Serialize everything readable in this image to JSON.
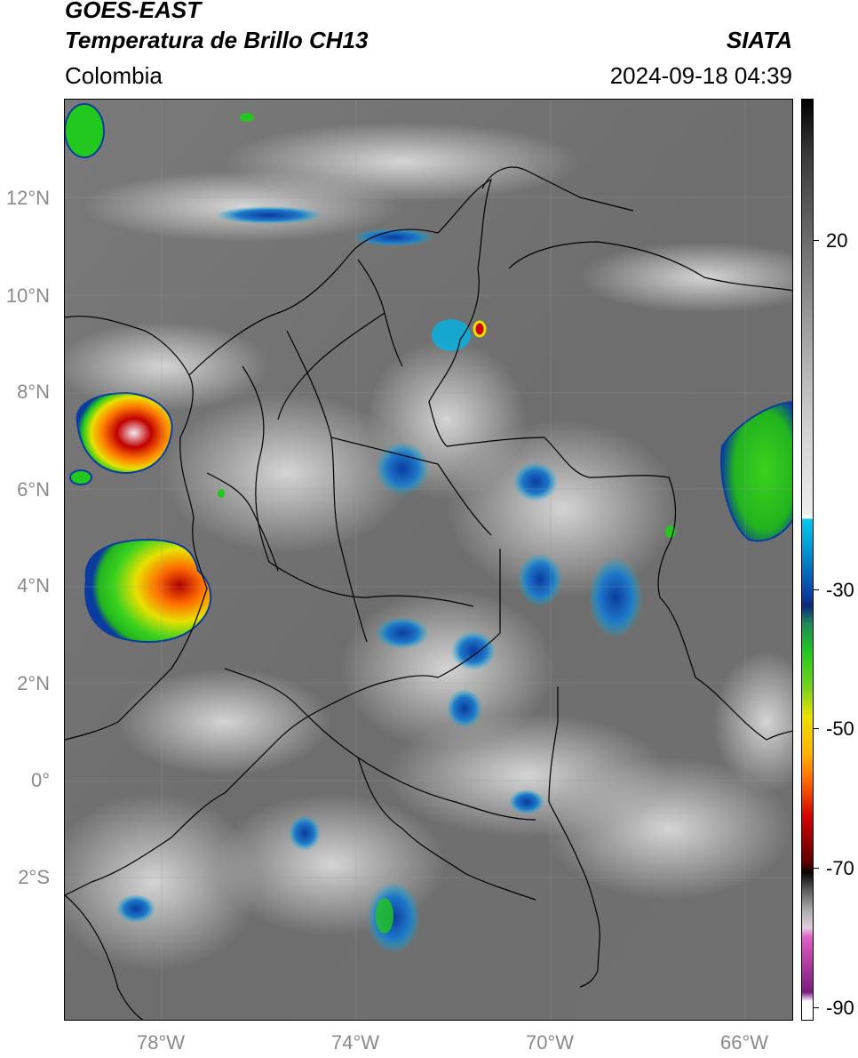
{
  "header": {
    "satellite": "GOES-EAST",
    "product": "Temperatura de Brillo CH13",
    "region": "Colombia",
    "agency": "SIATA",
    "datetime": "2024-09-18 04:39"
  },
  "map": {
    "lat_ticks": [
      "12°N",
      "10°N",
      "8°N",
      "6°N",
      "4°N",
      "2°N",
      "0°",
      "2°S"
    ],
    "lon_ticks": [
      "78°W",
      "74°W",
      "70°W",
      "66°W"
    ],
    "extent": {
      "lon_min": -80,
      "lon_max": -65,
      "lat_min": -5,
      "lat_max": 14
    }
  },
  "colorbar": {
    "labels": [
      "20",
      "-30",
      "-50",
      "-70",
      "-90"
    ],
    "colors": {
      "warm_dark": "#2a2a2a",
      "gray": "#8c8c8c",
      "light": "#e8e8e8",
      "cyan": "#00b4e6",
      "blue": "#0a3ca0",
      "green": "#22c81e",
      "yellow": "#f0e000",
      "orange": "#ff8c00",
      "red": "#d20000",
      "black": "#050505",
      "pink": "#e066c8",
      "purple": "#7a1a80"
    }
  }
}
